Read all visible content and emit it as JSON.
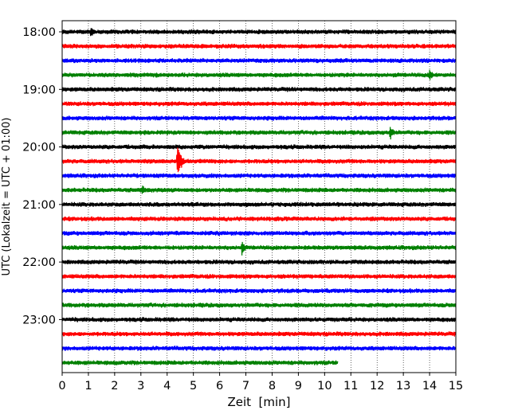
{
  "chart_data": {
    "type": "line",
    "chart_kind": "helicorder (seismogram drum plot)",
    "title": "",
    "xlabel": "Zeit  [min]",
    "ylabel": "UTC (Lokalzeit = UTC + 01:00)",
    "xlim": [
      0,
      15
    ],
    "x_ticks": [
      "0",
      "1",
      "2",
      "3",
      "4",
      "5",
      "6",
      "7",
      "8",
      "9",
      "10",
      "11",
      "12",
      "13",
      "14",
      "15"
    ],
    "y_tick_labels": [
      "18:00",
      "19:00",
      "20:00",
      "21:00",
      "22:00",
      "23:00"
    ],
    "y_tick_rows": [
      0,
      4,
      8,
      12,
      16,
      20
    ],
    "grid": "vertical dotted lines at each minute",
    "legend": "none",
    "trace_colors": [
      "#000000",
      "#ff0000",
      "#0000ff",
      "#008000"
    ],
    "rows": 24,
    "row_minutes": 15,
    "last_row_end_min": 10.5,
    "events": [
      {
        "row": 0,
        "time_min": 1.1,
        "amplitude": 0.45
      },
      {
        "row": 3,
        "time_min": 14.0,
        "amplitude": 0.5
      },
      {
        "row": 7,
        "time_min": 12.5,
        "amplitude": 0.6
      },
      {
        "row": 9,
        "time_min": 4.4,
        "amplitude": 1.6
      },
      {
        "row": 11,
        "time_min": 3.05,
        "amplitude": 0.45
      },
      {
        "row": 15,
        "time_min": 6.85,
        "amplitude": 0.55
      }
    ],
    "noise_amplitude": 0.18
  }
}
